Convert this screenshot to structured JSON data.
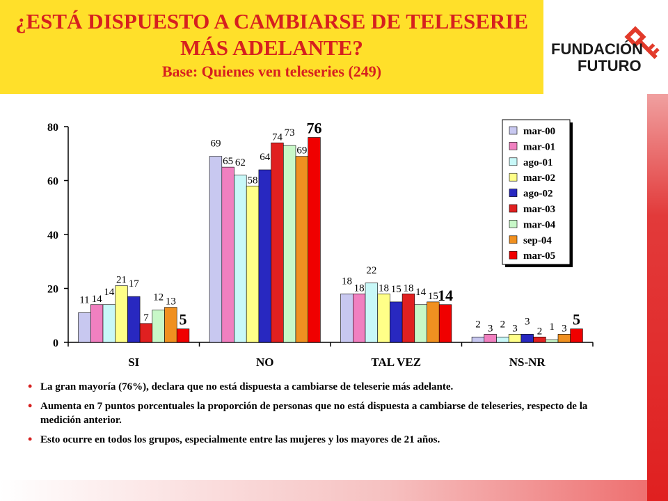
{
  "header": {
    "title_line1": "¿ESTÁ DISPUESTO A CAMBIARSE DE TELESERIE",
    "title_line2": "MÁS ADELANTE?",
    "subtitle": "Base: Quienes ven teleseries (249)"
  },
  "logo": {
    "line1": "FUNDACIÓN",
    "line2": "FUTURO",
    "icon": "key-icon"
  },
  "colors": {
    "title_bg": "#ffe02a",
    "title_text": "#d6201f",
    "accent": "#e02020"
  },
  "chart_data": {
    "type": "bar",
    "categories": [
      "SI",
      "NO",
      "TAL VEZ",
      "NS-NR"
    ],
    "ylim": [
      0,
      80
    ],
    "yticks": [
      0,
      20,
      40,
      60,
      80
    ],
    "legend_position": "top-right",
    "grid": false,
    "series": [
      {
        "name": "mar-00",
        "color": "#c8c8f0",
        "values": [
          11,
          69,
          18,
          2
        ],
        "labels": [
          "11",
          "69",
          "18",
          "2"
        ]
      },
      {
        "name": "mar-01",
        "color": "#f080c0",
        "values": [
          14,
          65,
          18,
          3
        ],
        "labels": [
          "14",
          "65",
          "18",
          "3"
        ]
      },
      {
        "name": "ago-01",
        "color": "#c8f8f8",
        "values": [
          14,
          62,
          22,
          2
        ],
        "labels": [
          "14",
          "62",
          "22",
          "2"
        ]
      },
      {
        "name": "mar-02",
        "color": "#ffff88",
        "values": [
          21,
          58,
          18,
          3
        ],
        "labels": [
          "21",
          "58",
          "18",
          "3"
        ]
      },
      {
        "name": "ago-02",
        "color": "#2828c0",
        "values": [
          17,
          64,
          15,
          3
        ],
        "labels": [
          "17",
          "64",
          "15",
          "3"
        ]
      },
      {
        "name": "mar-03",
        "color": "#e02020",
        "values": [
          7,
          74,
          18,
          2
        ],
        "labels": [
          "7",
          "74",
          "18",
          "2"
        ]
      },
      {
        "name": "mar-04",
        "color": "#c8f8c8",
        "values": [
          12,
          73,
          14,
          1
        ],
        "labels": [
          "12",
          "73",
          "14",
          "1"
        ]
      },
      {
        "name": "sep-04",
        "color": "#f09020",
        "values": [
          13,
          69,
          15,
          3
        ],
        "labels": [
          "13",
          "69",
          "15",
          "3"
        ]
      },
      {
        "name": "mar-05",
        "color": "#f00000",
        "values": [
          5,
          76,
          14,
          5
        ],
        "labels": [
          "5",
          "76",
          "14",
          "5"
        ]
      }
    ]
  },
  "bullets": [
    "La gran mayoría (76%), declara que no está dispuesta a cambiarse de teleserie más adelante.",
    "Aumenta en 7 puntos porcentuales la proporción de personas que no está dispuesta a cambiarse de teleseries, respecto de la medición anterior.",
    "Esto ocurre en todos los grupos, especialmente entre las mujeres y los mayores de 21 años."
  ]
}
